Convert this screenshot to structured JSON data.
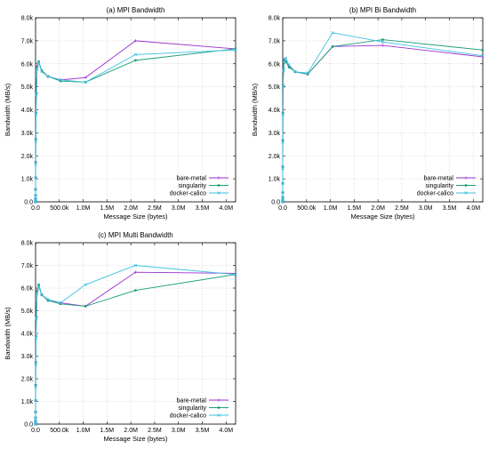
{
  "figure": {
    "x_label": "Message Size (bytes)",
    "y_label": "Bandwidth (MB/s)",
    "x_ticks": [
      "0.0",
      "500.0k",
      "1.0M",
      "1.5M",
      "2.0M",
      "2.5M",
      "3.0M",
      "3.5M",
      "4.0M"
    ],
    "y_ticks": [
      "0.0",
      "1.0k",
      "2.0k",
      "3.0k",
      "4.0k",
      "5.0k",
      "6.0k",
      "7.0k",
      "8.0k"
    ],
    "legend": [
      "bare-metal",
      "singularity",
      "docker-calico"
    ],
    "colors": {
      "bare-metal": "#9b30d0",
      "singularity": "#1a9e77",
      "docker-calico": "#3cc0e0"
    }
  },
  "chart_data": [
    {
      "type": "line",
      "title": "(a) MPI Bandwidth",
      "xlabel": "Message Size (bytes)",
      "ylabel": "Bandwidth (MB/s)",
      "xlim": [
        0,
        4200000
      ],
      "ylim": [
        0,
        8000
      ],
      "grid": true,
      "legend_position": "bottom-right",
      "series": [
        {
          "name": "bare-metal",
          "color": "#9b30d0",
          "x": [
            1,
            2,
            4,
            8,
            16,
            32,
            64,
            128,
            256,
            512,
            1024,
            2048,
            4096,
            8192,
            16384,
            32768,
            65536,
            131072,
            262144,
            524288,
            1048576,
            2097152,
            4194304
          ],
          "y": [
            1,
            2,
            4,
            9,
            18,
            35,
            70,
            140,
            280,
            540,
            1050,
            1750,
            2750,
            3900,
            4750,
            5900,
            6050,
            5700,
            5450,
            5300,
            5400,
            7000,
            6650
          ]
        },
        {
          "name": "singularity",
          "color": "#1a9e77",
          "x": [
            1,
            2,
            4,
            8,
            16,
            32,
            64,
            128,
            256,
            512,
            1024,
            2048,
            4096,
            8192,
            16384,
            32768,
            65536,
            131072,
            262144,
            524288,
            1048576,
            2097152,
            4194304
          ],
          "y": [
            1,
            2,
            4,
            9,
            18,
            35,
            70,
            140,
            280,
            540,
            1050,
            1700,
            2700,
            3850,
            4700,
            5850,
            6100,
            5700,
            5450,
            5250,
            5200,
            6150,
            6650
          ]
        },
        {
          "name": "docker-calico",
          "color": "#3cc0e0",
          "x": [
            1,
            2,
            4,
            8,
            16,
            32,
            64,
            128,
            256,
            512,
            1024,
            2048,
            4096,
            8192,
            16384,
            32768,
            65536,
            131072,
            262144,
            524288,
            1048576,
            2097152,
            4194304
          ],
          "y": [
            1,
            2,
            4,
            9,
            18,
            35,
            70,
            140,
            280,
            540,
            1050,
            1650,
            2650,
            3800,
            4650,
            5800,
            6050,
            5650,
            5450,
            5300,
            5200,
            6400,
            6600
          ]
        }
      ]
    },
    {
      "type": "line",
      "title": "(b) MPI Bi Bandwidth",
      "xlabel": "Message Size (bytes)",
      "ylabel": "Bandwidth (MB/s)",
      "xlim": [
        0,
        4200000
      ],
      "ylim": [
        0,
        8000
      ],
      "grid": true,
      "legend_position": "bottom-right",
      "series": [
        {
          "name": "bare-metal",
          "color": "#9b30d0",
          "x": [
            1,
            2,
            4,
            8,
            16,
            32,
            64,
            128,
            256,
            512,
            1024,
            2048,
            4096,
            8192,
            16384,
            32768,
            65536,
            131072,
            262144,
            524288,
            1048576,
            2097152,
            4194304
          ],
          "y": [
            1,
            3,
            6,
            12,
            25,
            50,
            100,
            200,
            400,
            800,
            1550,
            2700,
            3900,
            5100,
            5800,
            6200,
            6100,
            5900,
            5650,
            5550,
            6750,
            6800,
            6300
          ]
        },
        {
          "name": "singularity",
          "color": "#1a9e77",
          "x": [
            1,
            2,
            4,
            8,
            16,
            32,
            64,
            128,
            256,
            512,
            1024,
            2048,
            4096,
            8192,
            16384,
            32768,
            65536,
            131072,
            262144,
            524288,
            1048576,
            2097152,
            4194304
          ],
          "y": [
            1,
            3,
            6,
            12,
            25,
            50,
            100,
            200,
            400,
            800,
            1500,
            2650,
            3850,
            5050,
            5750,
            6150,
            6100,
            5850,
            5650,
            5550,
            6750,
            7050,
            6600
          ]
        },
        {
          "name": "docker-calico",
          "color": "#3cc0e0",
          "x": [
            1,
            2,
            4,
            8,
            16,
            32,
            64,
            128,
            256,
            512,
            1024,
            2048,
            4096,
            8192,
            16384,
            32768,
            65536,
            131072,
            262144,
            524288,
            1048576,
            2097152,
            4194304
          ],
          "y": [
            1,
            3,
            6,
            12,
            25,
            50,
            100,
            200,
            400,
            800,
            1450,
            2600,
            3800,
            5000,
            5700,
            6100,
            6250,
            5950,
            5650,
            5600,
            7350,
            6950,
            6350
          ]
        }
      ]
    },
    {
      "type": "line",
      "title": "(c) MPI Multi Bandwidth",
      "xlabel": "Message Size (bytes)",
      "ylabel": "Bandwidth (MB/s)",
      "xlim": [
        0,
        4200000
      ],
      "ylim": [
        0,
        8000
      ],
      "grid": true,
      "legend_position": "bottom-right",
      "series": [
        {
          "name": "bare-metal",
          "color": "#9b30d0",
          "x": [
            1,
            2,
            4,
            8,
            16,
            32,
            64,
            128,
            256,
            512,
            1024,
            2048,
            4096,
            8192,
            16384,
            32768,
            65536,
            131072,
            262144,
            524288,
            1048576,
            2097152,
            4194304
          ],
          "y": [
            1,
            2,
            4,
            9,
            18,
            35,
            70,
            140,
            280,
            540,
            1050,
            1750,
            2750,
            3900,
            4750,
            5900,
            6100,
            5700,
            5450,
            5350,
            5200,
            6700,
            6650
          ]
        },
        {
          "name": "singularity",
          "color": "#1a9e77",
          "x": [
            1,
            2,
            4,
            8,
            16,
            32,
            64,
            128,
            256,
            512,
            1024,
            2048,
            4096,
            8192,
            16384,
            32768,
            65536,
            131072,
            262144,
            524288,
            1048576,
            2097152,
            4194304
          ],
          "y": [
            1,
            2,
            4,
            9,
            18,
            35,
            70,
            140,
            280,
            540,
            1050,
            1700,
            2700,
            3850,
            4700,
            5850,
            6150,
            5700,
            5450,
            5300,
            5200,
            5900,
            6600
          ]
        },
        {
          "name": "docker-calico",
          "color": "#3cc0e0",
          "x": [
            1,
            2,
            4,
            8,
            16,
            32,
            64,
            128,
            256,
            512,
            1024,
            2048,
            4096,
            8192,
            16384,
            32768,
            65536,
            131072,
            262144,
            524288,
            1048576,
            2097152,
            4194304
          ],
          "y": [
            1,
            2,
            4,
            9,
            18,
            35,
            70,
            140,
            280,
            540,
            1050,
            1650,
            2650,
            3800,
            4650,
            5800,
            6050,
            5700,
            5500,
            5350,
            6150,
            7000,
            6600
          ]
        }
      ]
    }
  ]
}
